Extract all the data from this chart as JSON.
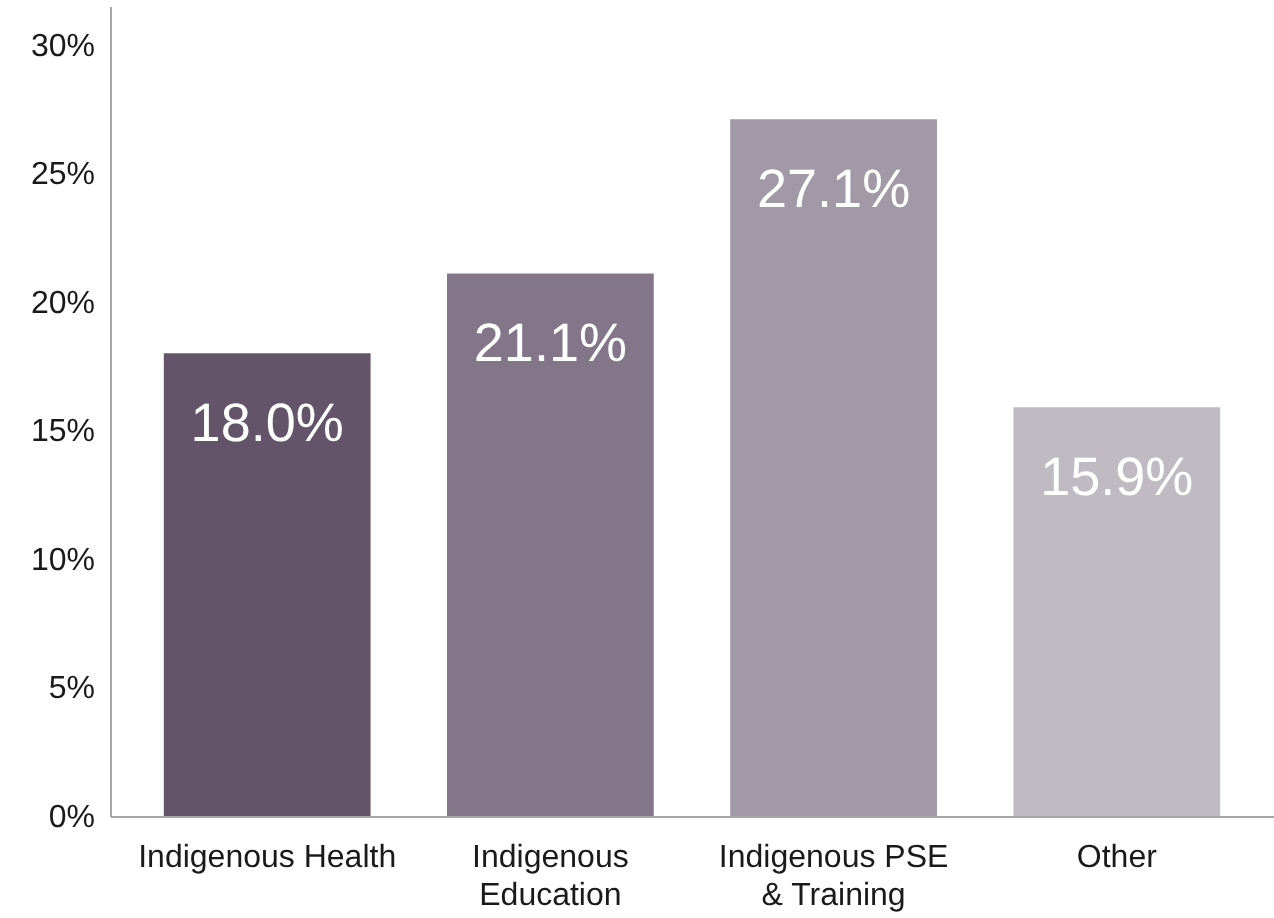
{
  "chart_data": {
    "type": "bar",
    "categories": [
      "Indigenous Health",
      "Indigenous Education",
      "Indigenous PSE & Training",
      "Other"
    ],
    "values": [
      18.0,
      21.1,
      27.1,
      15.9
    ],
    "colors": [
      "#64546a",
      "#847689",
      "#a299a7",
      "#c0bac3"
    ],
    "value_labels": [
      "18.0%",
      "21.1%",
      "27.1%",
      "15.9%"
    ],
    "ylim": [
      0,
      31.5
    ],
    "yticks": [
      {
        "value": 0,
        "label": "0%"
      },
      {
        "value": 5,
        "label": "5%"
      },
      {
        "value": 10,
        "label": "10%"
      },
      {
        "value": 15,
        "label": "15%"
      },
      {
        "value": 20,
        "label": "20%"
      },
      {
        "value": 25,
        "label": "25%"
      },
      {
        "value": 30,
        "label": "30%"
      }
    ],
    "grid": false
  }
}
